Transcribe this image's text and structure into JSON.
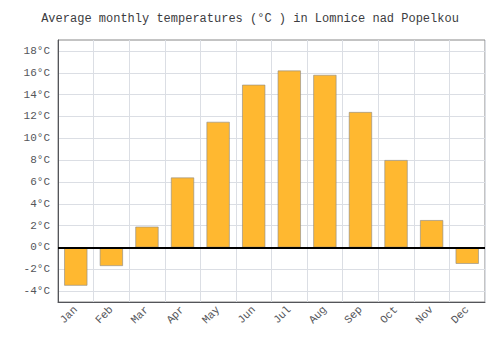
{
  "chart_data": {
    "type": "bar",
    "title": "Average monthly temperatures (°C ) in Lomnice nad Popelkou",
    "categories": [
      "Jan",
      "Feb",
      "Mar",
      "Apr",
      "May",
      "Jun",
      "Jul",
      "Aug",
      "Sep",
      "Oct",
      "Nov",
      "Dec"
    ],
    "values": [
      -3.5,
      -1.7,
      1.9,
      6.4,
      11.5,
      14.9,
      16.2,
      15.8,
      12.4,
      8.0,
      2.5,
      -1.5
    ],
    "color": "#FFB830",
    "ylim": [
      -5,
      19
    ],
    "yticks": [
      {
        "value": -4,
        "label": "-4°C"
      },
      {
        "value": -2,
        "label": "-2°C"
      },
      {
        "value": 0,
        "label": "0°C"
      },
      {
        "value": 2,
        "label": "2°C"
      },
      {
        "value": 4,
        "label": "4°C"
      },
      {
        "value": 6,
        "label": "6°C"
      },
      {
        "value": 8,
        "label": "8°C"
      },
      {
        "value": 10,
        "label": "10°C"
      },
      {
        "value": 12,
        "label": "12°C"
      },
      {
        "value": 14,
        "label": "14°C"
      },
      {
        "value": 16,
        "label": "16°C"
      },
      {
        "value": 18,
        "label": "18°C"
      }
    ],
    "grid": true
  }
}
